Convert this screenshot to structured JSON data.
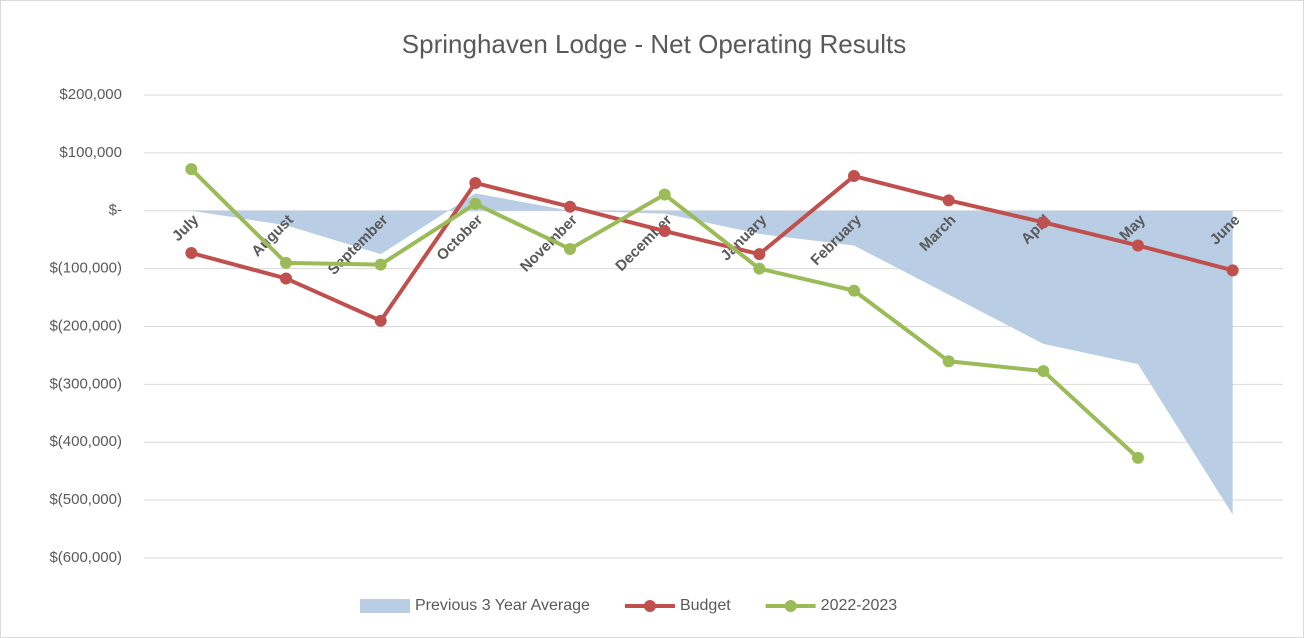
{
  "chart_data": {
    "type": "line",
    "title": "Springhaven Lodge - Net Operating Results",
    "categories": [
      "July",
      "August",
      "September",
      "October",
      "November",
      "December",
      "January",
      "February",
      "March",
      "April",
      "May",
      "June"
    ],
    "series": [
      {
        "name": "Previous 3 Year Average",
        "kind": "area",
        "color": "#b9cde5",
        "values": [
          0,
          -25000,
          -75000,
          30000,
          0,
          -5000,
          -40000,
          -60000,
          -145000,
          -230000,
          -265000,
          -525000
        ]
      },
      {
        "name": "Budget",
        "kind": "line",
        "color": "#c0504d",
        "values": [
          -73000,
          -117000,
          -190000,
          48000,
          7000,
          -35000,
          -75000,
          60000,
          18000,
          -20000,
          -60000,
          -103000
        ]
      },
      {
        "name": "2022-2023",
        "kind": "line",
        "color": "#9bbb59",
        "values": [
          72000,
          -90000,
          -93000,
          12000,
          -66000,
          28000,
          -100000,
          -138000,
          -260000,
          -277000,
          -427000,
          null
        ]
      }
    ],
    "ylim": [
      -600000,
      200000
    ],
    "yticks": [
      {
        "value": 200000,
        "label": "$200,000"
      },
      {
        "value": 100000,
        "label": "$100,000"
      },
      {
        "value": 0,
        "label": "$-"
      },
      {
        "value": -100000,
        "label": "$(100,000)"
      },
      {
        "value": -200000,
        "label": "$(200,000)"
      },
      {
        "value": -300000,
        "label": "$(300,000)"
      },
      {
        "value": -400000,
        "label": "$(400,000)"
      },
      {
        "value": -500000,
        "label": "$(500,000)"
      },
      {
        "value": -600000,
        "label": "$(600,000)"
      }
    ],
    "grid": true,
    "legend": "bottom"
  }
}
